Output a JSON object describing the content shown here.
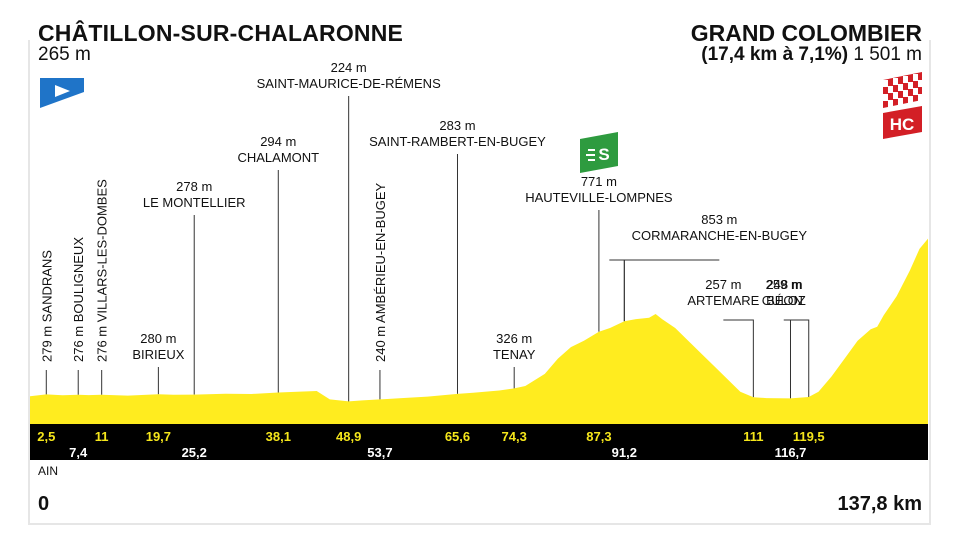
{
  "start": {
    "name": "CHÂTILLON-SUR-CHALARONNE",
    "altitude": "265 m",
    "distance": "0"
  },
  "finish": {
    "name": "GRAND COLOMBIER",
    "climb": "(17,4 km à 7,1%)",
    "altitude": "1 501 m",
    "distance": "137,8 km",
    "category": "HC"
  },
  "region": "AIN",
  "sprint_badge": "S",
  "colors": {
    "profile": "#ffec1f",
    "band": "#000000",
    "band_text_top": "#f5e61b",
    "start_flag": "#1f74c8",
    "sprint": "#2e9b3f",
    "hc": "#d31f26"
  },
  "chart_data": {
    "type": "area",
    "xlabel": "",
    "ylabel": "",
    "xlim": [
      0,
      137.8
    ],
    "ylim": [
      0,
      1600
    ],
    "profile": [
      [
        0,
        265
      ],
      [
        2.5,
        279
      ],
      [
        5,
        272
      ],
      [
        7.4,
        276
      ],
      [
        9,
        274
      ],
      [
        11,
        276
      ],
      [
        15,
        270
      ],
      [
        19.7,
        280
      ],
      [
        22,
        276
      ],
      [
        25.2,
        278
      ],
      [
        30,
        284
      ],
      [
        34,
        282
      ],
      [
        38.1,
        294
      ],
      [
        41,
        300
      ],
      [
        44,
        306
      ],
      [
        46,
        240
      ],
      [
        48.9,
        224
      ],
      [
        51,
        232
      ],
      [
        53.7,
        240
      ],
      [
        57,
        250
      ],
      [
        61,
        262
      ],
      [
        65.6,
        283
      ],
      [
        68,
        292
      ],
      [
        72,
        310
      ],
      [
        74.3,
        326
      ],
      [
        76,
        345
      ],
      [
        79,
        440
      ],
      [
        81,
        560
      ],
      [
        83,
        650
      ],
      [
        85,
        700
      ],
      [
        87.3,
        771
      ],
      [
        89,
        800
      ],
      [
        91.2,
        853
      ],
      [
        93,
        870
      ],
      [
        95,
        880
      ],
      [
        96,
        910
      ],
      [
        97,
        870
      ],
      [
        99,
        800
      ],
      [
        101,
        700
      ],
      [
        103,
        600
      ],
      [
        105,
        500
      ],
      [
        107,
        400
      ],
      [
        109,
        300
      ],
      [
        111,
        257
      ],
      [
        113,
        250
      ],
      [
        116.7,
        248
      ],
      [
        119.5,
        259
      ],
      [
        121,
        300
      ],
      [
        123,
        420
      ],
      [
        125,
        560
      ],
      [
        127,
        700
      ],
      [
        129,
        790
      ],
      [
        130,
        810
      ],
      [
        131,
        900
      ],
      [
        133,
        1050
      ],
      [
        135,
        1250
      ],
      [
        136.5,
        1420
      ],
      [
        137.8,
        1501
      ]
    ],
    "points": [
      {
        "name": "SANDRANS",
        "alt": "279 m",
        "km": 2.5,
        "km_label": "2,5",
        "style": "vertical",
        "row": "top"
      },
      {
        "name": "BOULIGNEUX",
        "alt": "276 m",
        "km": 7.4,
        "km_label": "7,4",
        "style": "vertical",
        "row": "bottom"
      },
      {
        "name": "VILLARS-LES-DOMBES",
        "alt": "276 m",
        "km": 11,
        "km_label": "11",
        "style": "vertical",
        "row": "top"
      },
      {
        "name": "BIRIEUX",
        "alt": "280 m",
        "km": 19.7,
        "km_label": "19,7",
        "style": "horizontal",
        "row": "top"
      },
      {
        "name": "LE MONTELLIER",
        "alt": "278 m",
        "km": 25.2,
        "km_label": "25,2",
        "style": "horizontal",
        "row": "bottom"
      },
      {
        "name": "CHALAMONT",
        "alt": "294 m",
        "km": 38.1,
        "km_label": "38,1",
        "style": "horizontal",
        "row": "top"
      },
      {
        "name": "SAINT-MAURICE-DE-RÉMENS",
        "alt": "224 m",
        "km": 48.9,
        "km_label": "48,9",
        "style": "horizontal",
        "row": "top"
      },
      {
        "name": "AMBÉRIEU-EN-BUGEY",
        "alt": "240 m",
        "km": 53.7,
        "km_label": "53,7",
        "style": "vertical",
        "row": "bottom"
      },
      {
        "name": "SAINT-RAMBERT-EN-BUGEY",
        "alt": "283 m",
        "km": 65.6,
        "km_label": "65,6",
        "style": "horizontal",
        "row": "top"
      },
      {
        "name": "TENAY",
        "alt": "326 m",
        "km": 74.3,
        "km_label": "74,3",
        "style": "horizontal",
        "row": "top"
      },
      {
        "name": "HAUTEVILLE-LOMPNES",
        "alt": "771 m",
        "km": 87.3,
        "km_label": "87,3",
        "style": "horizontal",
        "row": "top"
      },
      {
        "name": "CORMARANCHE-EN-BUGEY",
        "alt": "853 m",
        "km": 91.2,
        "km_label": "91,2",
        "style": "horizontal",
        "row": "bottom"
      },
      {
        "name": "ARTEMARE",
        "alt": "257 m",
        "km": 111,
        "km_label": "111",
        "style": "horizontal",
        "row": "top"
      },
      {
        "name": "BÉON",
        "alt": "248 m",
        "km": 116.7,
        "km_label": "116,7",
        "style": "horizontal",
        "row": "bottom"
      },
      {
        "name": "CULOZ",
        "alt": "259 m",
        "km": 119.5,
        "km_label": "119,5",
        "style": "horizontal",
        "row": "top"
      }
    ]
  }
}
